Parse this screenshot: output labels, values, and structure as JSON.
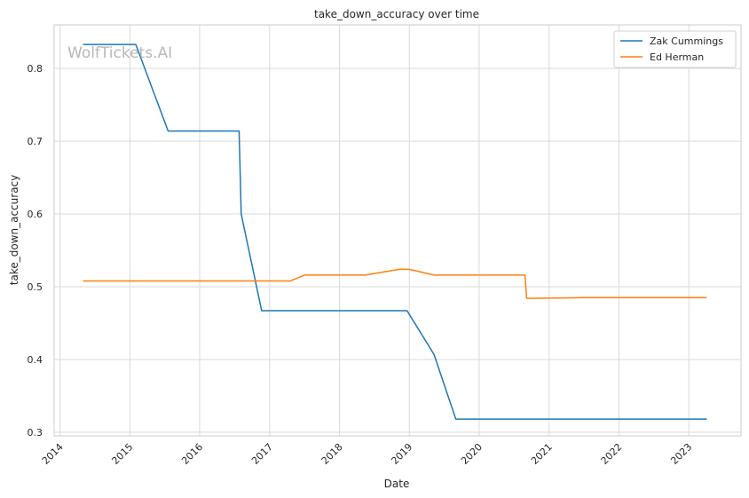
{
  "watermark": "WolfTickets.AI",
  "chart_data": {
    "type": "line",
    "title": "take_down_accuracy over time",
    "xlabel": "Date",
    "ylabel": "take_down_accuracy",
    "x_type": "date",
    "xlim": [
      "2013-12-01",
      "2023-10-01"
    ],
    "ylim": [
      0.295,
      0.86
    ],
    "x_ticks": [
      "2014-01-01",
      "2015-01-01",
      "2016-01-01",
      "2017-01-01",
      "2018-01-01",
      "2019-01-01",
      "2020-01-01",
      "2021-01-01",
      "2022-01-01",
      "2023-01-01"
    ],
    "x_tick_labels": [
      "2014",
      "2015",
      "2016",
      "2017",
      "2018",
      "2019",
      "2020",
      "2021",
      "2022",
      "2023"
    ],
    "y_ticks": [
      0.3,
      0.4,
      0.5,
      0.6,
      0.7,
      0.8
    ],
    "y_tick_labels": [
      "0.3",
      "0.4",
      "0.5",
      "0.6",
      "0.7",
      "0.8"
    ],
    "grid": true,
    "legend_position": "top-right",
    "series": [
      {
        "name": "Zak Cummings",
        "color": "#1f77b4",
        "points": [
          {
            "x": "2014-05-01",
            "y": 0.833
          },
          {
            "x": "2015-02-01",
            "y": 0.833
          },
          {
            "x": "2015-07-20",
            "y": 0.714
          },
          {
            "x": "2016-07-25",
            "y": 0.714
          },
          {
            "x": "2016-08-05",
            "y": 0.6
          },
          {
            "x": "2016-11-20",
            "y": 0.467
          },
          {
            "x": "2018-12-20",
            "y": 0.467
          },
          {
            "x": "2019-05-10",
            "y": 0.407
          },
          {
            "x": "2019-09-01",
            "y": 0.318
          },
          {
            "x": "2023-04-05",
            "y": 0.318
          }
        ]
      },
      {
        "name": "Ed Herman",
        "color": "#ff7f0e",
        "points": [
          {
            "x": "2014-05-01",
            "y": 0.508
          },
          {
            "x": "2017-04-20",
            "y": 0.508
          },
          {
            "x": "2017-07-01",
            "y": 0.516
          },
          {
            "x": "2018-05-15",
            "y": 0.516
          },
          {
            "x": "2018-11-10",
            "y": 0.524
          },
          {
            "x": "2019-01-01",
            "y": 0.524
          },
          {
            "x": "2019-05-10",
            "y": 0.516
          },
          {
            "x": "2020-08-28",
            "y": 0.516
          },
          {
            "x": "2020-09-05",
            "y": 0.484
          },
          {
            "x": "2021-07-01",
            "y": 0.485
          },
          {
            "x": "2023-04-05",
            "y": 0.485
          }
        ]
      }
    ]
  }
}
